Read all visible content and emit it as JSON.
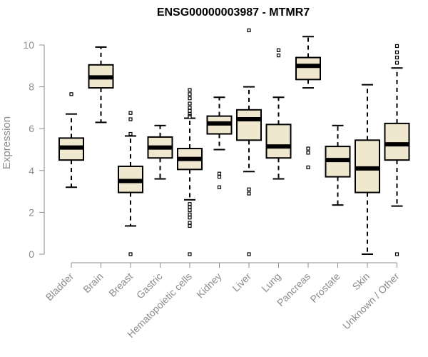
{
  "chart_data": {
    "type": "boxplot",
    "title": "ENSG00000003987 - MTMR7",
    "xlabel": "",
    "ylabel": "Expression",
    "ylim": [
      0,
      10.8
    ],
    "yticks": [
      0,
      2,
      4,
      6,
      8,
      10
    ],
    "grid": false,
    "colors": {
      "box_fill": "#efe8cf",
      "stroke": "#000000",
      "axis": "#8c8c8c"
    },
    "categories": [
      "Bladder",
      "Brain",
      "Breast",
      "Gastric",
      "Hematopoietic cells",
      "Kidney",
      "Liver",
      "Lung",
      "Pancreas",
      "Prostate",
      "Skin",
      "Unknown / Other"
    ],
    "boxes": [
      {
        "name": "Bladder",
        "min": 3.2,
        "q1": 4.5,
        "median": 5.1,
        "q3": 5.55,
        "max": 6.7,
        "outliers": [
          7.65
        ]
      },
      {
        "name": "Brain",
        "min": 6.3,
        "q1": 7.95,
        "median": 8.45,
        "q3": 9.05,
        "max": 9.9,
        "outliers": []
      },
      {
        "name": "Breast",
        "min": 1.35,
        "q1": 2.95,
        "median": 3.5,
        "q3": 4.2,
        "max": 5.65,
        "outliers": [
          6.75,
          6.45,
          5.75,
          0.0
        ]
      },
      {
        "name": "Gastric",
        "min": 3.6,
        "q1": 4.6,
        "median": 5.1,
        "q3": 5.6,
        "max": 6.15,
        "outliers": []
      },
      {
        "name": "Hematopoietic cells",
        "min": 2.6,
        "q1": 4.05,
        "median": 4.55,
        "q3": 5.05,
        "max": 6.5,
        "outliers": [
          7.85,
          7.65,
          7.45,
          7.2,
          7.0,
          6.85,
          6.7,
          6.6,
          6.55,
          2.4,
          2.25,
          2.1,
          1.9,
          1.75,
          1.5,
          1.35,
          0.0
        ]
      },
      {
        "name": "Kidney",
        "min": 5.0,
        "q1": 5.75,
        "median": 6.25,
        "q3": 6.6,
        "max": 7.5,
        "outliers": [
          3.85,
          3.7,
          3.2
        ]
      },
      {
        "name": "Liver",
        "min": 3.95,
        "q1": 5.45,
        "median": 6.45,
        "q3": 6.9,
        "max": 8.0,
        "outliers": [
          10.7,
          3.1,
          2.9,
          0.0
        ]
      },
      {
        "name": "Lung",
        "min": 3.6,
        "q1": 4.6,
        "median": 5.15,
        "q3": 6.2,
        "max": 7.5,
        "outliers": [
          9.75,
          9.5
        ]
      },
      {
        "name": "Pancreas",
        "min": 7.95,
        "q1": 8.35,
        "median": 9.0,
        "q3": 9.4,
        "max": 10.4,
        "outliers": [
          5.05,
          4.85,
          4.15
        ]
      },
      {
        "name": "Prostate",
        "min": 2.35,
        "q1": 3.7,
        "median": 4.5,
        "q3": 5.15,
        "max": 6.15,
        "outliers": []
      },
      {
        "name": "Skin",
        "min": 0.0,
        "q1": 2.95,
        "median": 4.1,
        "q3": 5.45,
        "max": 8.1,
        "outliers": []
      },
      {
        "name": "Unknown / Other",
        "min": 2.3,
        "q1": 4.5,
        "median": 5.25,
        "q3": 6.25,
        "max": 8.9,
        "outliers": [
          9.95,
          9.65,
          9.4,
          9.15,
          0.0
        ]
      }
    ]
  }
}
